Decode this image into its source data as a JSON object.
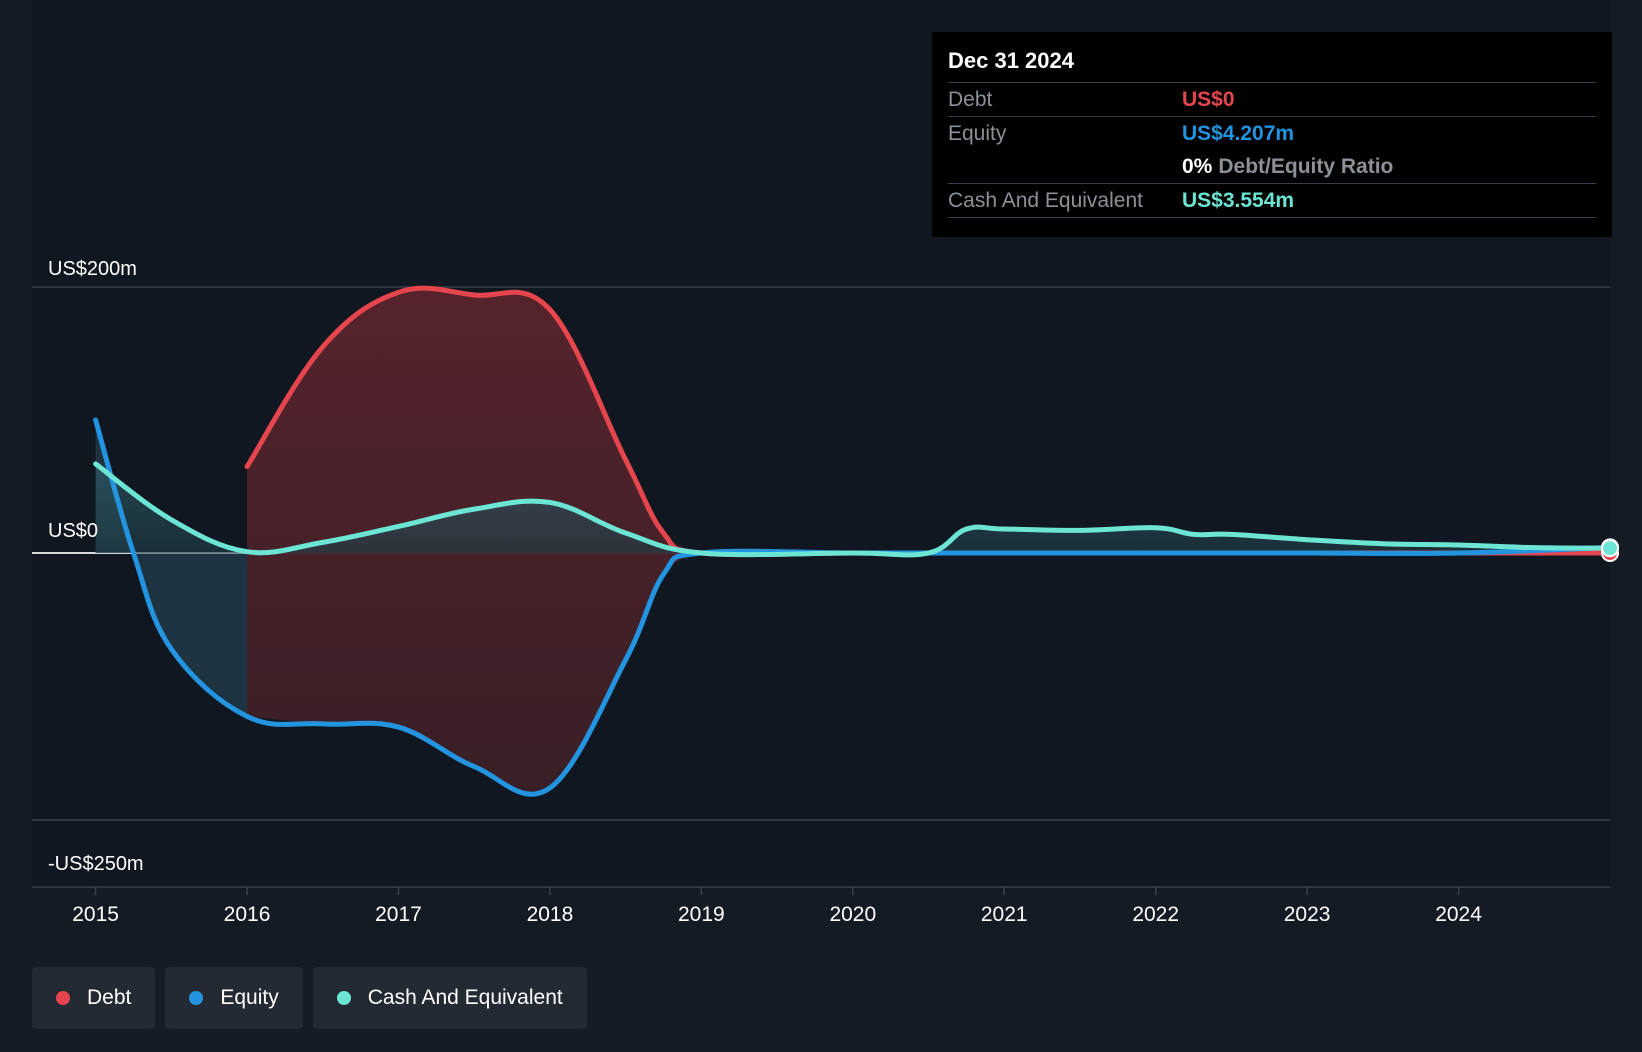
{
  "chart_data": {
    "type": "area",
    "y_axis_labels": [
      "US$200m",
      "US$0",
      "-US$250m"
    ],
    "ylim": [
      -250,
      200
    ],
    "x_ticks": [
      "2015",
      "2016",
      "2017",
      "2018",
      "2019",
      "2020",
      "2021",
      "2022",
      "2023",
      "2024"
    ],
    "xlim": [
      2014.58,
      2025.0
    ],
    "series": [
      {
        "name": "Debt",
        "color": "#e5454d",
        "points": [
          [
            2016.0,
            65
          ],
          [
            2016.5,
            155
          ],
          [
            2017.0,
            196
          ],
          [
            2017.5,
            194
          ],
          [
            2018.0,
            183
          ],
          [
            2018.5,
            70
          ],
          [
            2018.75,
            15
          ],
          [
            2019.0,
            0
          ],
          [
            2020.0,
            0
          ],
          [
            2021.0,
            0
          ],
          [
            2022.0,
            0
          ],
          [
            2023.0,
            0
          ],
          [
            2024.0,
            0
          ],
          [
            2025.0,
            0
          ]
        ]
      },
      {
        "name": "Equity",
        "color": "#2394df",
        "points": [
          [
            2015.0,
            100
          ],
          [
            2015.25,
            0
          ],
          [
            2015.5,
            -90
          ],
          [
            2016.0,
            -153
          ],
          [
            2016.5,
            -160
          ],
          [
            2017.0,
            -163
          ],
          [
            2017.5,
            -200
          ],
          [
            2018.0,
            -220
          ],
          [
            2018.5,
            -100
          ],
          [
            2018.75,
            -20
          ],
          [
            2019.0,
            0
          ],
          [
            2020.0,
            0
          ],
          [
            2020.5,
            0
          ],
          [
            2021.0,
            0
          ],
          [
            2022.0,
            0
          ],
          [
            2023.0,
            0
          ],
          [
            2024.0,
            0
          ],
          [
            2025.0,
            4.2
          ]
        ]
      },
      {
        "name": "Cash And Equivalent",
        "color": "#6ce5d4",
        "points": [
          [
            2015.0,
            67
          ],
          [
            2015.5,
            25
          ],
          [
            2016.0,
            1
          ],
          [
            2016.5,
            8
          ],
          [
            2017.0,
            20
          ],
          [
            2017.5,
            33
          ],
          [
            2018.0,
            38
          ],
          [
            2018.5,
            15
          ],
          [
            2019.0,
            0
          ],
          [
            2020.0,
            0
          ],
          [
            2020.5,
            0
          ],
          [
            2020.75,
            18
          ],
          [
            2021.0,
            18
          ],
          [
            2021.5,
            17
          ],
          [
            2022.0,
            19
          ],
          [
            2022.25,
            14
          ],
          [
            2022.5,
            14
          ],
          [
            2023.0,
            10
          ],
          [
            2023.5,
            7
          ],
          [
            2024.0,
            6
          ],
          [
            2024.5,
            4
          ],
          [
            2025.0,
            3.6
          ]
        ]
      }
    ],
    "grid": true,
    "legend_position": "bottom-left"
  },
  "tooltip": {
    "date": "Dec 31 2024",
    "debt_label": "Debt",
    "debt_value": "US$0",
    "equity_label": "Equity",
    "equity_value": "US$4.207m",
    "ratio_value": "0%",
    "ratio_label": "Debt/Equity Ratio",
    "cash_label": "Cash And Equivalent",
    "cash_value": "US$3.554m"
  },
  "legend": [
    {
      "label": "Debt",
      "color": "#e5454d"
    },
    {
      "label": "Equity",
      "color": "#2394df"
    },
    {
      "label": "Cash And Equivalent",
      "color": "#6ce5d4"
    }
  ]
}
